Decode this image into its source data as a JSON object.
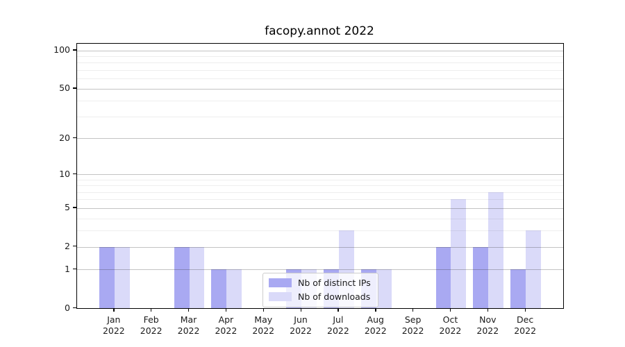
{
  "chart_data": {
    "type": "bar",
    "title": "facopy.annot 2022",
    "categories": [
      "Jan 2022",
      "Feb 2022",
      "Mar 2022",
      "Apr 2022",
      "May 2022",
      "Jun 2022",
      "Jul 2022",
      "Aug 2022",
      "Sep 2022",
      "Oct 2022",
      "Nov 2022",
      "Dec 2022"
    ],
    "series": [
      {
        "name": "Nb of distinct IPs",
        "color": "#a9a9f2",
        "values": [
          2,
          0,
          2,
          1,
          0,
          1,
          1,
          1,
          0,
          2,
          2,
          1
        ]
      },
      {
        "name": "Nb of downloads",
        "color": "#dadaf9",
        "values": [
          2,
          0,
          2,
          1,
          0,
          1,
          3,
          1,
          0,
          6,
          7,
          3
        ]
      }
    ],
    "xlabel": "",
    "ylabel": "",
    "yscale": "log1p",
    "ylim": [
      0,
      113
    ],
    "y_major_ticks": [
      0,
      1,
      2,
      5,
      10,
      20,
      50,
      100
    ],
    "y_minor_ticks": [
      3,
      4,
      6,
      7,
      8,
      9,
      30,
      40,
      60,
      70,
      80,
      90
    ],
    "grid": "major-and-minor, drawn over bars",
    "legend_position": "lower center"
  },
  "style_colors": {
    "bar_distinct_ips": "#a9a9f2",
    "bar_downloads": "#dadaf9",
    "axis_spine": "#000000",
    "grid_major": "#c6c6c6",
    "grid_minor": "#ececec",
    "legend_border": "#cccccc",
    "background": "#ffffff"
  }
}
